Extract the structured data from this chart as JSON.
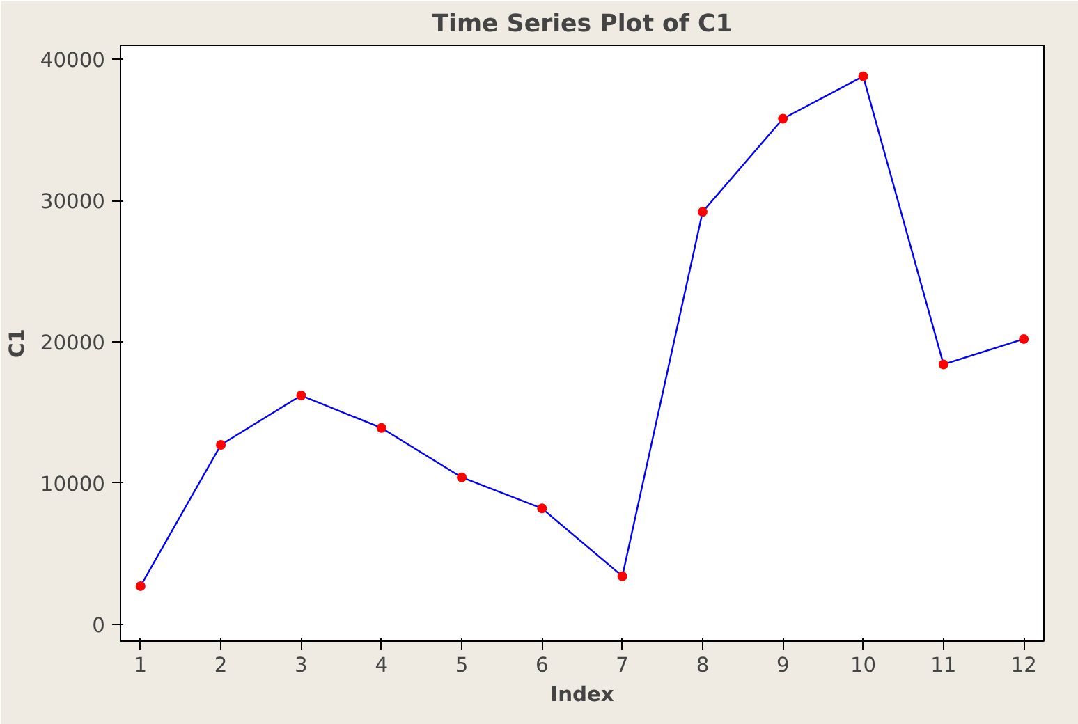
{
  "chart_data": {
    "type": "line",
    "title": "Time Series Plot of C1",
    "xlabel": "Index",
    "ylabel": "C1",
    "x": [
      1,
      2,
      3,
      4,
      5,
      6,
      7,
      8,
      9,
      10,
      11,
      12
    ],
    "series": [
      {
        "color": "#0000ff",
        "colors": [
          "#ff0000",
          "#ff0000",
          "#ff0000",
          "#ff0000",
          "#ff0000",
          "#ff0000",
          "#ff0000",
          "#ff0000",
          "#ff0000",
          "#ff0000",
          "#ff0000",
          "#ff0000"
        ],
        "values": [
          2700,
          12700,
          16200,
          13900,
          10400,
          8200,
          3400,
          29200,
          35800,
          38800,
          18400,
          20200
        ]
      }
    ],
    "xlim": [
      0.75,
      12.25
    ],
    "xticks": [
      1,
      2,
      3,
      4,
      5,
      6,
      7,
      8,
      9,
      10,
      11,
      12
    ],
    "ylim": [
      -1200,
      41000
    ],
    "yticks": [
      0,
      10000,
      20000,
      30000,
      40000
    ],
    "grid": false,
    "marker": "circle",
    "line_style": "solid"
  }
}
